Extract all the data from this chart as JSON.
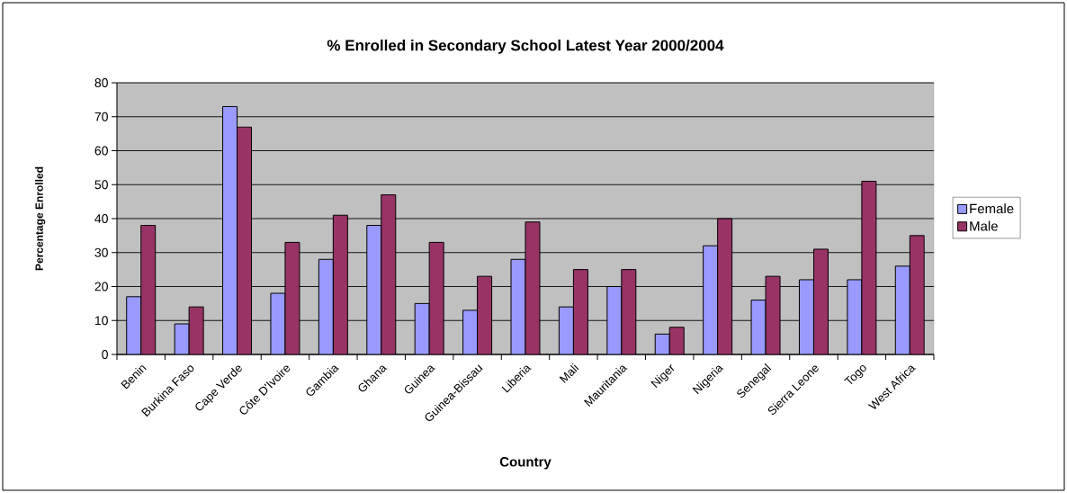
{
  "chart_data": {
    "type": "bar",
    "title": "% Enrolled in Secondary School Latest Year 2000/2004",
    "xlabel": "Country",
    "ylabel": "Percentage Enrolled",
    "categories": [
      "Benin",
      "Burkina Faso",
      "Cape Verde",
      "Côte D'Ivoire",
      "Gambia",
      "Ghana",
      "Guinea",
      "Guinea-Bissau",
      "Liberia",
      "Mali",
      "Mauritania",
      "Niger",
      "Nigeria",
      "Senegal",
      "Sierra Leone",
      "Togo",
      "West Africa"
    ],
    "series": [
      {
        "name": "Female",
        "color": "#9999ff",
        "values": [
          17,
          9,
          73,
          18,
          28,
          38,
          15,
          13,
          28,
          14,
          20,
          6,
          32,
          16,
          22,
          22,
          26
        ]
      },
      {
        "name": "Male",
        "color": "#993366",
        "values": [
          38,
          14,
          67,
          33,
          41,
          47,
          33,
          23,
          39,
          25,
          25,
          8,
          40,
          23,
          31,
          51,
          35
        ]
      }
    ],
    "ylim": [
      0,
      80
    ],
    "yticks": [
      0,
      10,
      20,
      30,
      40,
      50,
      60,
      70,
      80
    ],
    "grid": "y",
    "legend": "right"
  }
}
